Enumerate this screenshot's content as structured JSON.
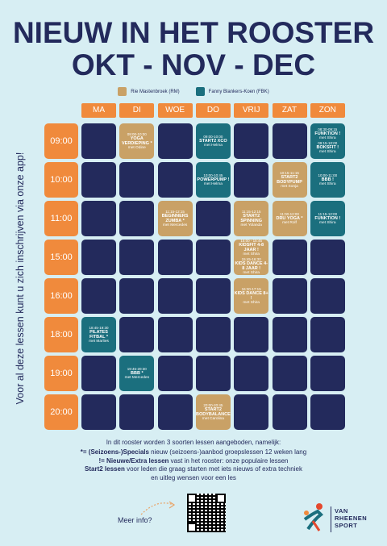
{
  "header": {
    "title": "NIEUW IN HET ROOSTER",
    "subtitle": "OKT - NOV - DEC"
  },
  "legend": [
    {
      "label": "Rie Mastenbroek (RM)",
      "color": "#c9a166"
    },
    {
      "label": "Fanny Blankers-Koen (FBK)",
      "color": "#1b6f7e"
    }
  ],
  "side_text": "Voor al deze lessen kunt u zich inschrijven via onze app!",
  "days": [
    "MA",
    "DI",
    "WOE",
    "DO",
    "VRIJ",
    "ZAT",
    "ZON"
  ],
  "rows": [
    {
      "time": "09:00",
      "cells": [
        null,
        {
          "color": "#c9a166",
          "sessions": [
            {
              "time": "09:00-10:00",
              "title": "YOGA VERDIEPING *",
              "teacher": "met Odine"
            }
          ]
        },
        null,
        {
          "color": "#1b6f7e",
          "sessions": [
            {
              "time": "09:00-10:00",
              "title": "START2 XCO",
              "teacher": "met Helma"
            }
          ]
        },
        null,
        null,
        {
          "color": "#1b6f7e",
          "sessions": [
            {
              "time": "08:30-09:15",
              "title": "FUNKTION !",
              "teacher": "met Shira"
            },
            {
              "time": "09:15-10:00",
              "title": "BOKSFIT !",
              "teacher": "met Shira"
            }
          ]
        }
      ]
    },
    {
      "time": "10:00",
      "cells": [
        null,
        null,
        null,
        {
          "color": "#1b6f7e",
          "sessions": [
            {
              "time": "10:00-10:45",
              "title": "POWERPUMP !",
              "teacher": "met Helma"
            }
          ]
        },
        null,
        {
          "color": "#c9a166",
          "sessions": [
            {
              "time": "10:15-11:15",
              "title": "START2 BODYPUMP",
              "teacher": "met Sonja"
            }
          ]
        },
        {
          "color": "#1b6f7e",
          "sessions": [
            {
              "time": "10:00-11:00",
              "title": "BBB !",
              "teacher": "met Shira"
            }
          ]
        }
      ]
    },
    {
      "time": "11:00",
      "cells": [
        null,
        null,
        {
          "color": "#c9a166",
          "sessions": [
            {
              "time": "11:15-12:15",
              "title": "BEGINNERS ZUMBA *",
              "teacher": "met Mercedes"
            }
          ]
        },
        null,
        {
          "color": "#c9a166",
          "sessions": [
            {
              "time": "11:15-12:15",
              "title": "START2 SPINNING",
              "teacher": "met Yolanda"
            }
          ]
        },
        {
          "color": "#c9a166",
          "sessions": [
            {
              "time": "11:00-12:00",
              "title": "DRU YOGA *",
              "teacher": "met Rolf"
            }
          ]
        },
        {
          "color": "#1b6f7e",
          "sessions": [
            {
              "time": "11:15-12:00",
              "title": "FUNKTION !",
              "teacher": "met Shira"
            }
          ]
        }
      ]
    },
    {
      "time": "15:00",
      "cells": [
        null,
        null,
        null,
        null,
        {
          "color": "#c9a166",
          "sessions": [
            {
              "time": "15:00 - 15:45",
              "title": "KIDSFIT 4-8 JAAR !",
              "teacher": "met Shira"
            },
            {
              "time": "15:45-16:30",
              "title": "KIDS DANCE 4-8 JAAR !",
              "teacher": "met Shira"
            }
          ]
        },
        null,
        null
      ]
    },
    {
      "time": "16:00",
      "cells": [
        null,
        null,
        null,
        null,
        {
          "color": "#c9a166",
          "sessions": [
            {
              "time": "16:30-17:15",
              "title": "KIDS DANCE 8+ !",
              "teacher": "met Shira"
            }
          ]
        },
        null,
        null
      ]
    },
    {
      "time": "18:00",
      "cells": [
        {
          "color": "#1b6f7e",
          "sessions": [
            {
              "time": "18:45-19:30",
              "title": "PILATES FITBAL *",
              "teacher": "met Marlies"
            }
          ]
        },
        null,
        null,
        null,
        null,
        null,
        null
      ]
    },
    {
      "time": "19:00",
      "cells": [
        null,
        {
          "color": "#1b6f7e",
          "sessions": [
            {
              "time": "19:45-20:30",
              "title": "BBB *",
              "teacher": "met Mercedes"
            }
          ]
        },
        null,
        null,
        null,
        null,
        null
      ]
    },
    {
      "time": "20:00",
      "cells": [
        null,
        null,
        null,
        {
          "color": "#c9a166",
          "sessions": [
            {
              "time": "20:00-20:45",
              "title": "START2 BODYBALANCE",
              "teacher": "met Carolina"
            }
          ]
        },
        null,
        null,
        null
      ]
    }
  ],
  "footer": {
    "intro": "In dit rooster worden 3 soorten lessen aangeboden, namelijk:",
    "lines": [
      {
        "bold": "*= (Seizoens-)Specials",
        "text": " nieuw (seizoens-)aanbod groepslessen 12 weken lang"
      },
      {
        "bold": "!= Nieuwe/Extra lessen",
        "text": " vast in het rooster: onze populaire lessen"
      },
      {
        "bold": "Start2 lessen",
        "text": " voor leden die graag starten met iets nieuws of extra techniek"
      },
      {
        "bold": "",
        "text": "en uitleg wensen voor een les"
      }
    ],
    "more_info": "Meer info?"
  },
  "logo": {
    "line1": "VAN",
    "line2": "RHEENEN",
    "line3": "SPORT"
  }
}
